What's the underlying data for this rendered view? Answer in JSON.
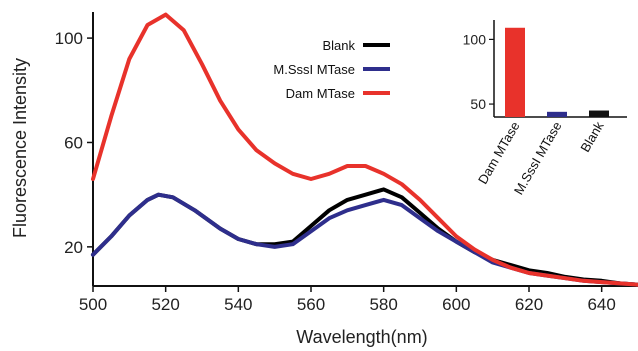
{
  "chart_data": [
    {
      "type": "line",
      "xlabel": "Wavelength(nm)",
      "ylabel": "Fluorescence Intensity",
      "xlim": [
        500,
        650
      ],
      "ylim": [
        5,
        110
      ],
      "x_ticks": [
        "500",
        "520",
        "540",
        "560",
        "580",
        "600",
        "620",
        "640"
      ],
      "y_ticks": [
        "20",
        "60",
        "100"
      ],
      "legend_position": "top-right",
      "series": [
        {
          "name": "Blank",
          "color": "#000000",
          "x": [
            500,
            505,
            510,
            515,
            518,
            522,
            528,
            535,
            540,
            545,
            550,
            555,
            560,
            565,
            570,
            575,
            580,
            585,
            590,
            595,
            600,
            605,
            610,
            615,
            620,
            625,
            630,
            635,
            640,
            645,
            650
          ],
          "y": [
            17,
            24,
            32,
            38,
            40,
            39,
            34,
            27,
            23,
            21,
            21,
            22,
            28,
            34,
            38,
            40,
            42,
            39,
            33,
            27,
            22,
            18,
            15,
            13,
            11,
            10,
            8.5,
            7.5,
            7,
            6,
            5.5
          ]
        },
        {
          "name": "M.SssI  MTase",
          "color": "#2e2e8c",
          "x": [
            500,
            505,
            510,
            515,
            518,
            522,
            528,
            535,
            540,
            545,
            550,
            555,
            560,
            565,
            570,
            575,
            580,
            585,
            590,
            595,
            600,
            605,
            610,
            615,
            620,
            625,
            630,
            635,
            640,
            645,
            650
          ],
          "y": [
            17,
            24,
            32,
            38,
            40,
            39,
            34,
            27,
            23,
            21,
            20,
            21,
            26,
            31,
            34,
            36,
            38,
            36,
            31,
            26,
            22,
            18,
            14,
            12,
            10,
            9,
            8,
            7,
            6.5,
            6,
            5.5
          ]
        },
        {
          "name": "Dam  MTase",
          "color": "#e8322b",
          "x": [
            500,
            505,
            510,
            515,
            520,
            525,
            530,
            535,
            540,
            545,
            550,
            555,
            560,
            565,
            570,
            575,
            580,
            585,
            590,
            595,
            600,
            605,
            610,
            615,
            620,
            625,
            630,
            635,
            640,
            645,
            650
          ],
          "y": [
            46,
            70,
            92,
            105,
            109,
            103,
            90,
            76,
            65,
            57,
            52,
            48,
            46,
            48,
            51,
            51,
            48,
            44,
            38,
            31,
            24,
            19,
            15,
            12,
            10,
            9,
            8,
            7,
            6.5,
            6,
            5.5
          ]
        }
      ]
    },
    {
      "type": "bar",
      "categories": [
        "Dam  MTase",
        "M.SssI  MTase",
        "Blank"
      ],
      "values": [
        109,
        44,
        45
      ],
      "colors": [
        "#e8322b",
        "#2e2e8c",
        "#111111"
      ],
      "ylim": [
        40,
        115
      ],
      "y_ticks": [
        "50",
        "100"
      ]
    }
  ]
}
